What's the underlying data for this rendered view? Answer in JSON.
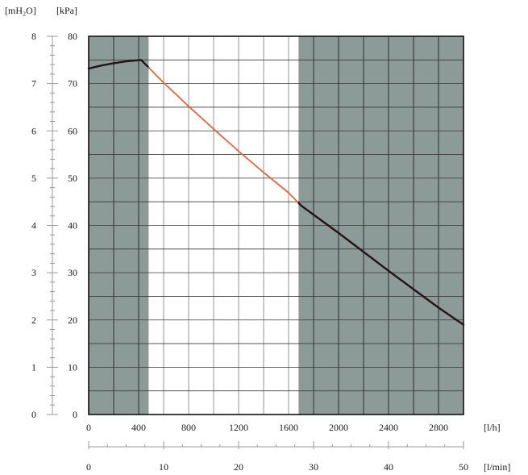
{
  "chart_data": {
    "type": "line",
    "title": "",
    "units": {
      "left_primary": "[mH₂O]",
      "left_secondary": "[kPa]",
      "bottom_primary": "[l/h]",
      "bottom_secondary": "[l/min]"
    },
    "y_mh2o_ticks": [
      "0",
      "1",
      "2",
      "3",
      "4",
      "5",
      "6",
      "7",
      "8"
    ],
    "y_kpa_ticks": [
      "0",
      "10",
      "20",
      "30",
      "40",
      "50",
      "60",
      "70",
      "80"
    ],
    "x_lh_ticks": [
      "0",
      "400",
      "800",
      "1200",
      "1600",
      "2000",
      "2400",
      "2800"
    ],
    "x_lmin_ticks": [
      "0",
      "10",
      "20",
      "30",
      "40",
      "50"
    ],
    "x_range": [
      0,
      3000
    ],
    "y_range": [
      0,
      80
    ],
    "grid": true,
    "shaded_regions": [
      {
        "x_from": 0,
        "x_to": 480
      },
      {
        "x_from": 1680,
        "x_to": 3000
      }
    ],
    "shade_color": "#8c9a98",
    "curve_color_optimal": "#e0663a",
    "curve_color_outside": "#241414",
    "series": [
      {
        "values": [
          {
            "x": 0,
            "y": 73.2
          },
          {
            "x": 100,
            "y": 73.8
          },
          {
            "x": 200,
            "y": 74.3
          },
          {
            "x": 300,
            "y": 74.7
          },
          {
            "x": 420,
            "y": 75.0
          },
          {
            "x": 600,
            "y": 70.2
          },
          {
            "x": 800,
            "y": 65.2
          },
          {
            "x": 1000,
            "y": 60.4
          },
          {
            "x": 1200,
            "y": 55.7
          },
          {
            "x": 1400,
            "y": 51.2
          },
          {
            "x": 1600,
            "y": 46.9
          },
          {
            "x": 1700,
            "y": 44.2
          },
          {
            "x": 2000,
            "y": 38.4
          },
          {
            "x": 2400,
            "y": 30.4
          },
          {
            "x": 2800,
            "y": 22.6
          },
          {
            "x": 3000,
            "y": 19.0
          }
        ]
      }
    ]
  }
}
